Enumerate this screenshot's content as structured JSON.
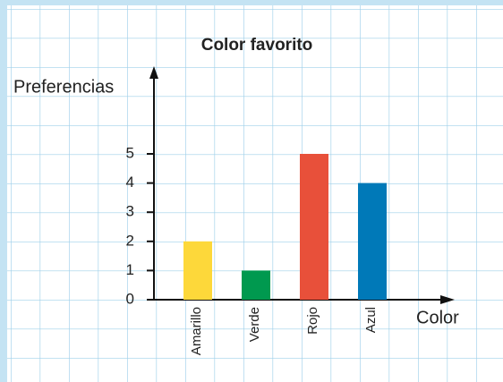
{
  "chart_data": {
    "type": "bar",
    "title": "Color favorito",
    "y_label": "Preferencias",
    "x_label": "Color",
    "categories": [
      "Amarillo",
      "Verde",
      "Rojo",
      "Azul"
    ],
    "values": [
      2,
      1,
      5,
      4
    ],
    "colors": [
      "#fdd83a",
      "#00994f",
      "#e8503a",
      "#0079b8"
    ],
    "ylim": [
      0,
      5
    ],
    "yticks": [
      0,
      1,
      2,
      3,
      4,
      5
    ]
  }
}
